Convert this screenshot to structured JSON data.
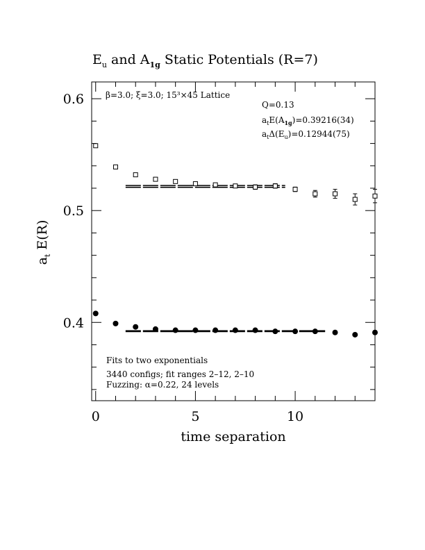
{
  "chart_data": {
    "type": "scatter",
    "title": {
      "main_1": "E",
      "main_1_sub": "u",
      "main_2": " and A",
      "main_2_sub": "1g",
      "main_3": " Static Potentials (R=7)"
    },
    "xlabel": "time separation",
    "ylabel": {
      "base": "a",
      "sub": "t",
      "rest": " E(R)"
    },
    "xlim": [
      -0.2,
      14
    ],
    "ylim": [
      0.33,
      0.615
    ],
    "x_ticks": [
      0,
      5,
      10
    ],
    "x_tick_labels": [
      "0",
      "5",
      "10"
    ],
    "y_ticks": [
      0.4,
      0.5,
      0.6
    ],
    "y_tick_labels": [
      "0.4",
      "0.5",
      "0.6"
    ],
    "annotations": {
      "lattice": "β=3.0; ξ=3.0; 15³×45 Lattice",
      "q": "Q=0.13",
      "ea1g_prefix": "a",
      "ea1g_sub": "t",
      "ea1g_mid": "E(A",
      "ea1g_sub2": "1g",
      "ea1g_value": ")=0.39216(34)",
      "deu_prefix": "a",
      "deu_sub": "t",
      "deu_mid": "Δ(E",
      "deu_sub2": "u",
      "deu_value": ")=0.12944(75)",
      "fits_line1": "Fits to two exponentials",
      "fits_line2": "3440 configs; fit ranges 2–12, 2–10",
      "fits_line3": "Fuzzing: α=0.22, 24 levels"
    },
    "series": [
      {
        "marker": "open-square",
        "points": [
          {
            "x": 0,
            "y": 0.558,
            "err": 0.001
          },
          {
            "x": 1,
            "y": 0.539,
            "err": 0.001
          },
          {
            "x": 2,
            "y": 0.532,
            "err": 0.001
          },
          {
            "x": 3,
            "y": 0.528,
            "err": 0.001
          },
          {
            "x": 4,
            "y": 0.526,
            "err": 0.001
          },
          {
            "x": 5,
            "y": 0.524,
            "err": 0.001
          },
          {
            "x": 6,
            "y": 0.523,
            "err": 0.0015
          },
          {
            "x": 7,
            "y": 0.522,
            "err": 0.0015
          },
          {
            "x": 8,
            "y": 0.521,
            "err": 0.002
          },
          {
            "x": 9,
            "y": 0.522,
            "err": 0.002
          },
          {
            "x": 10,
            "y": 0.519,
            "err": 0.002
          },
          {
            "x": 11,
            "y": 0.515,
            "err": 0.003
          },
          {
            "x": 12,
            "y": 0.515,
            "err": 0.004
          },
          {
            "x": 13,
            "y": 0.51,
            "err": 0.005
          },
          {
            "x": 14,
            "y": 0.513,
            "err": 0.006
          }
        ],
        "fit": {
          "x_range": [
            1.5,
            9.5
          ],
          "y": 0.5216,
          "err": 0.0008
        }
      },
      {
        "marker": "filled-circle",
        "points": [
          {
            "x": 0,
            "y": 0.408
          },
          {
            "x": 1,
            "y": 0.399
          },
          {
            "x": 2,
            "y": 0.396
          },
          {
            "x": 3,
            "y": 0.394
          },
          {
            "x": 4,
            "y": 0.393
          },
          {
            "x": 5,
            "y": 0.393
          },
          {
            "x": 6,
            "y": 0.393
          },
          {
            "x": 7,
            "y": 0.393
          },
          {
            "x": 8,
            "y": 0.393
          },
          {
            "x": 9,
            "y": 0.392
          },
          {
            "x": 10,
            "y": 0.392
          },
          {
            "x": 11,
            "y": 0.392
          },
          {
            "x": 12,
            "y": 0.391
          },
          {
            "x": 13,
            "y": 0.389
          },
          {
            "x": 14,
            "y": 0.391
          }
        ],
        "fit": {
          "x_range": [
            1.5,
            11.5
          ],
          "y": 0.39216,
          "err": 0.00034
        }
      }
    ]
  }
}
